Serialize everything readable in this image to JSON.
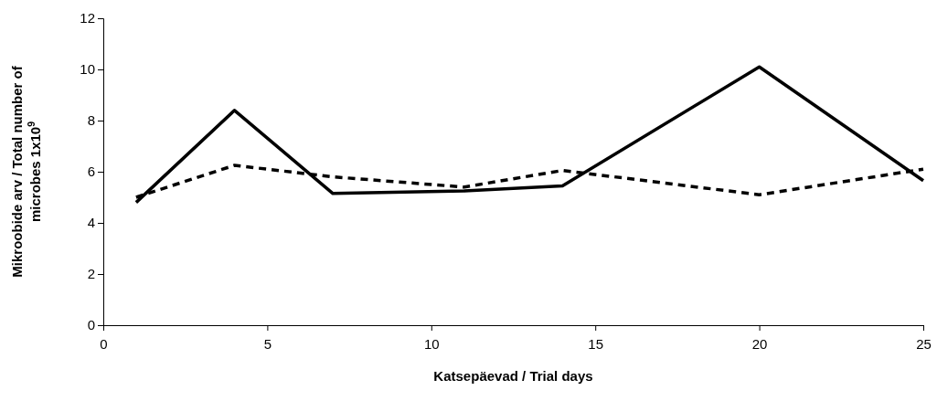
{
  "chart_data": {
    "type": "line",
    "xlabel": "Katsepäevad / Trial days",
    "ylabel": "Mikroobide arv / Total number of microbes 1x10$^{9}$",
    "x": [
      1,
      4,
      7,
      11,
      14,
      20,
      25
    ],
    "series": [
      {
        "color": "#000000",
        "line_style": "solid",
        "values": [
          4.8,
          8.4,
          5.15,
          5.25,
          5.45,
          10.1,
          5.65
        ]
      },
      {
        "color": "#000000",
        "line_style": "dashed",
        "values": [
          5.0,
          6.25,
          5.8,
          5.4,
          6.05,
          5.1,
          6.1
        ]
      }
    ],
    "xlim": [
      0,
      25
    ],
    "xticks": [
      0,
      5,
      10,
      15,
      20,
      25
    ],
    "ylim": [
      0,
      12
    ],
    "yticks": [
      0,
      2,
      4,
      6,
      8,
      10,
      12
    ]
  }
}
